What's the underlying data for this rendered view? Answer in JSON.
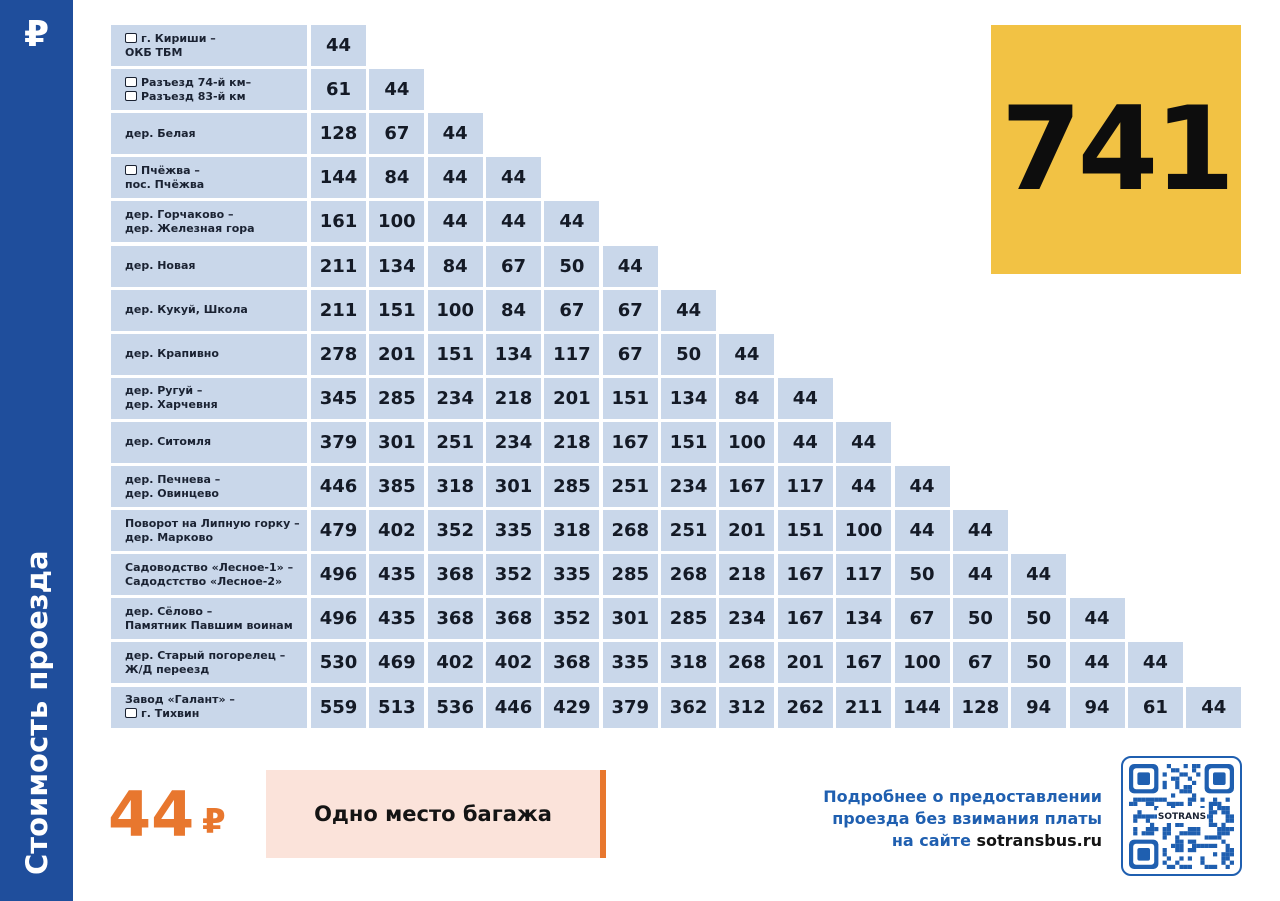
{
  "sidebar": {
    "currency_sign": "₽",
    "title": "Стоимость проезда"
  },
  "route_number": "741",
  "fare_table": {
    "rows": [
      {
        "lines": [
          {
            "text": "г. Кириши –",
            "icon": true
          },
          {
            "text": "ОКБ ТБМ",
            "icon": false
          }
        ],
        "values": [
          44
        ]
      },
      {
        "lines": [
          {
            "text": "Разъезд 74-й км–",
            "icon": true
          },
          {
            "text": "Разъезд 83-й км",
            "icon": true
          }
        ],
        "values": [
          61,
          44
        ]
      },
      {
        "lines": [
          {
            "text": "дер. Белая",
            "icon": false
          }
        ],
        "values": [
          128,
          67,
          44
        ]
      },
      {
        "lines": [
          {
            "text": "Пчёжва –",
            "icon": true
          },
          {
            "text": "пос. Пчёжва",
            "icon": false
          }
        ],
        "values": [
          144,
          84,
          44,
          44
        ]
      },
      {
        "lines": [
          {
            "text": "дер. Горчаково –",
            "icon": false
          },
          {
            "text": "дер. Железная гора",
            "icon": false
          }
        ],
        "values": [
          161,
          100,
          44,
          44,
          44
        ]
      },
      {
        "lines": [
          {
            "text": "дер. Новая",
            "icon": false
          }
        ],
        "values": [
          211,
          134,
          84,
          67,
          50,
          44
        ]
      },
      {
        "lines": [
          {
            "text": "дер. Кукуй, Школа",
            "icon": false
          }
        ],
        "values": [
          211,
          151,
          100,
          84,
          67,
          67,
          44
        ]
      },
      {
        "lines": [
          {
            "text": "дер. Крапивно",
            "icon": false
          }
        ],
        "values": [
          278,
          201,
          151,
          134,
          117,
          67,
          50,
          44
        ]
      },
      {
        "lines": [
          {
            "text": "дер. Ругуй –",
            "icon": false
          },
          {
            "text": "дер. Харчевня",
            "icon": false
          }
        ],
        "values": [
          345,
          285,
          234,
          218,
          201,
          151,
          134,
          84,
          44
        ]
      },
      {
        "lines": [
          {
            "text": "дер. Ситомля",
            "icon": false
          }
        ],
        "values": [
          379,
          301,
          251,
          234,
          218,
          167,
          151,
          100,
          44,
          44
        ]
      },
      {
        "lines": [
          {
            "text": "дер. Печнева –",
            "icon": false
          },
          {
            "text": "дер. Овинцево",
            "icon": false
          }
        ],
        "values": [
          446,
          385,
          318,
          301,
          285,
          251,
          234,
          167,
          117,
          44,
          44
        ]
      },
      {
        "lines": [
          {
            "text": "Поворот на Липную горку –",
            "icon": false
          },
          {
            "text": "дер. Марково",
            "icon": false
          }
        ],
        "values": [
          479,
          402,
          352,
          335,
          318,
          268,
          251,
          201,
          151,
          100,
          44,
          44
        ]
      },
      {
        "lines": [
          {
            "text": "Садоводство «Лесное-1» –",
            "icon": false
          },
          {
            "text": "Садодстство «Лесное-2»",
            "icon": false
          }
        ],
        "values": [
          496,
          435,
          368,
          352,
          335,
          285,
          268,
          218,
          167,
          117,
          50,
          44,
          44
        ]
      },
      {
        "lines": [
          {
            "text": "дер. Сёлово –",
            "icon": false
          },
          {
            "text": "Памятник Павшим воинам",
            "icon": false
          }
        ],
        "values": [
          496,
          435,
          368,
          368,
          352,
          301,
          285,
          234,
          167,
          134,
          67,
          50,
          50,
          44
        ]
      },
      {
        "lines": [
          {
            "text": "дер. Старый погорелец –",
            "icon": false
          },
          {
            "text": "Ж/Д переезд",
            "icon": false
          }
        ],
        "values": [
          530,
          469,
          402,
          402,
          368,
          335,
          318,
          268,
          201,
          167,
          100,
          67,
          50,
          44,
          44
        ]
      },
      {
        "lines": [
          {
            "text": "Завод «Галант» –",
            "icon": false
          },
          {
            "text": "г. Тихвин",
            "icon": true
          }
        ],
        "values": [
          559,
          513,
          536,
          446,
          429,
          379,
          362,
          312,
          262,
          211,
          144,
          128,
          94,
          94,
          61,
          44
        ]
      }
    ]
  },
  "baggage": {
    "price": 44,
    "currency": "₽",
    "label": "Одно место багажа"
  },
  "info": {
    "lines": [
      "Подробнее о предоставлении",
      "проезда без взимания платы",
      "на сайте"
    ],
    "site": "sotransbus.ru"
  },
  "qr": {
    "brand": "SOTRANS"
  }
}
